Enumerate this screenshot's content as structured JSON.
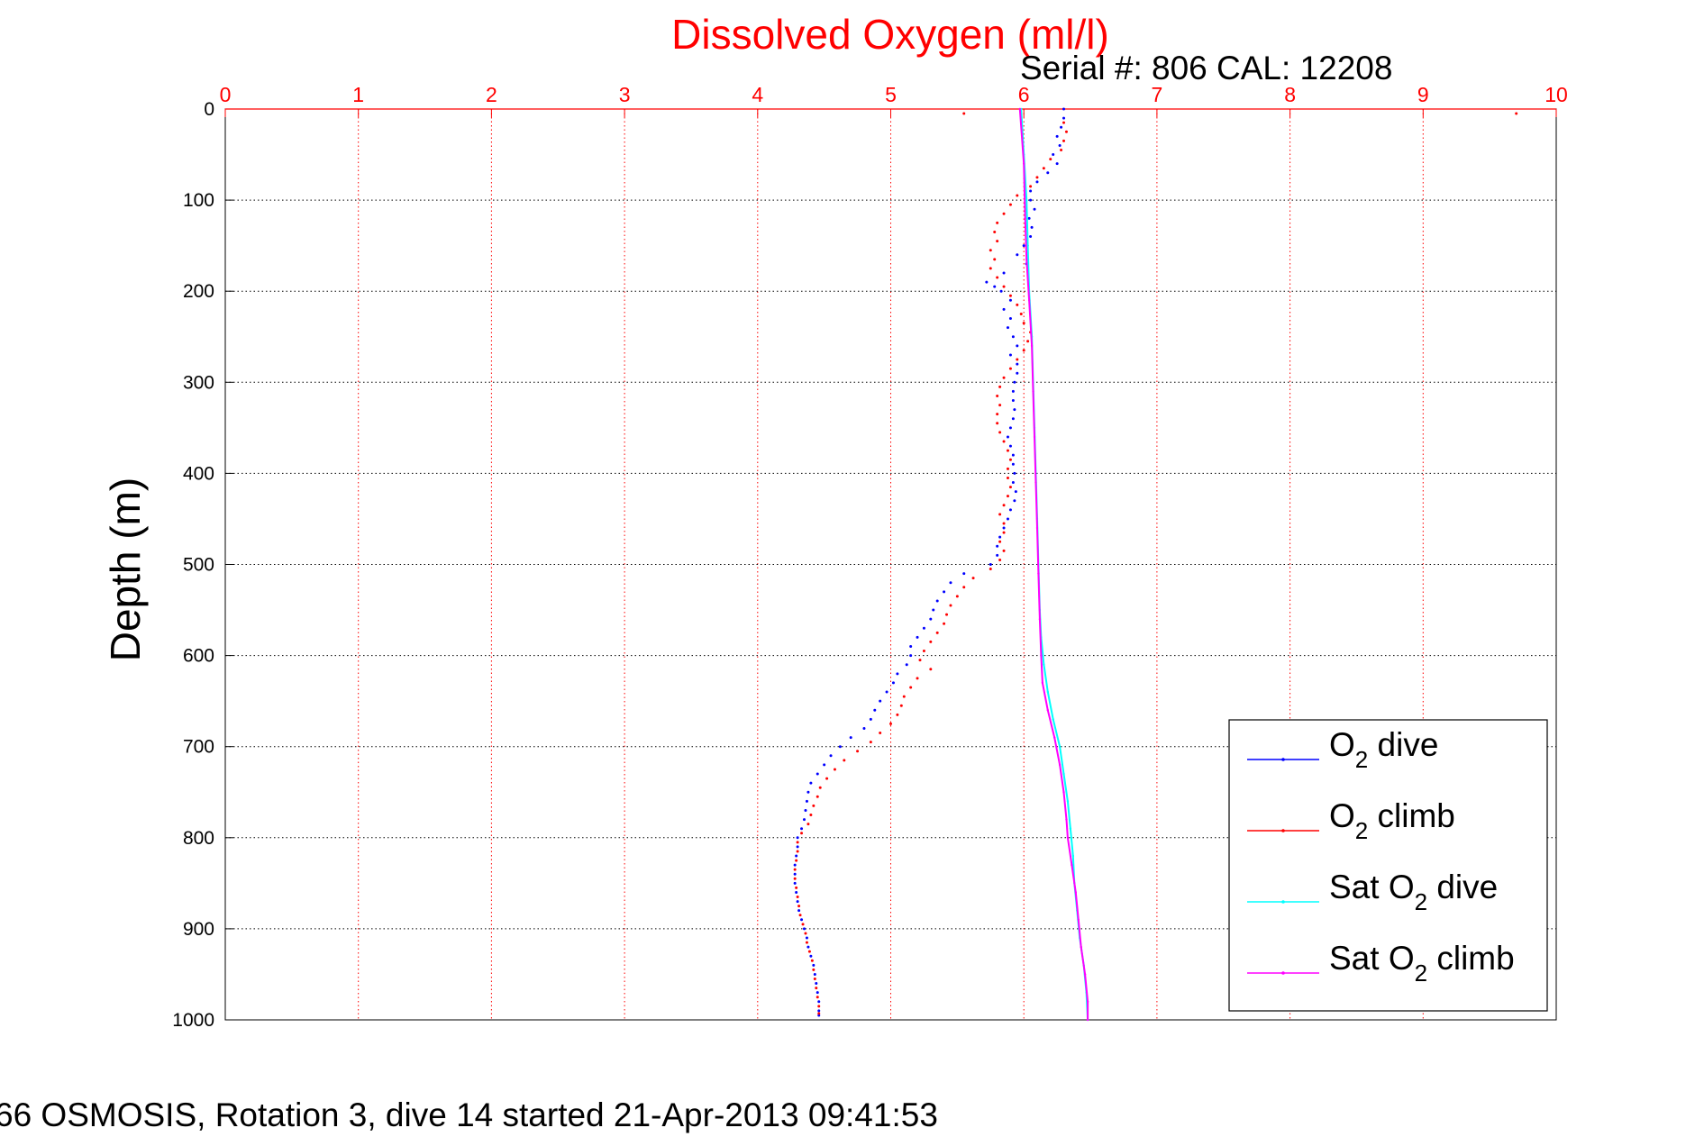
{
  "colors": {
    "x_axis": "#ff0000",
    "o2_dive": "#0000ff",
    "o2_climb": "#ff0000",
    "sat_dive": "#00ffff",
    "sat_climb": "#ff00ff"
  },
  "serial_text": "Serial #: 806  CAL: 12208",
  "footer_text": "66 OSMOSIS, Rotation 3, dive 14 started 21-Apr-2013 09:41:53",
  "chart_data": {
    "type": "scatter",
    "title": "Dissolved Oxygen (ml/l)",
    "xlabel": "",
    "ylabel": "Depth (m)",
    "xlim": [
      0,
      10
    ],
    "ylim": [
      0,
      1000
    ],
    "y_reversed": true,
    "x_axis_position": "top",
    "grid": true,
    "legend_position": "bottom-right",
    "xticks": [
      "0",
      "1",
      "2",
      "3",
      "4",
      "5",
      "6",
      "7",
      "8",
      "9",
      "10"
    ],
    "yticks": [
      "0",
      "100",
      "200",
      "300",
      "400",
      "500",
      "600",
      "700",
      "800",
      "900",
      "1000"
    ],
    "legend": [
      {
        "prefix": "O",
        "sub": "2",
        "suffix": " dive",
        "color": "#0000ff"
      },
      {
        "prefix": "O",
        "sub": "2",
        "suffix": " climb",
        "color": "#ff0000"
      },
      {
        "prefix": "Sat O",
        "sub": "2",
        "suffix": " dive",
        "color": "#00ffff"
      },
      {
        "prefix": "Sat O",
        "sub": "2",
        "suffix": " climb",
        "color": "#ff00ff"
      }
    ],
    "series": [
      {
        "key": "o2_dive",
        "marker": "dot",
        "points": [
          [
            6.3,
            0
          ],
          [
            6.3,
            10
          ],
          [
            6.28,
            20
          ],
          [
            6.25,
            30
          ],
          [
            6.27,
            40
          ],
          [
            6.22,
            50
          ],
          [
            6.25,
            60
          ],
          [
            6.18,
            70
          ],
          [
            6.1,
            80
          ],
          [
            6.05,
            90
          ],
          [
            6.05,
            100
          ],
          [
            6.08,
            110
          ],
          [
            6.04,
            120
          ],
          [
            6.06,
            130
          ],
          [
            6.05,
            140
          ],
          [
            6.0,
            150
          ],
          [
            5.95,
            160
          ],
          [
            6.02,
            170
          ],
          [
            5.85,
            180
          ],
          [
            5.72,
            190
          ],
          [
            5.78,
            195
          ],
          [
            5.83,
            200
          ],
          [
            5.9,
            210
          ],
          [
            5.85,
            220
          ],
          [
            5.9,
            230
          ],
          [
            5.88,
            240
          ],
          [
            5.92,
            250
          ],
          [
            5.95,
            260
          ],
          [
            5.9,
            270
          ],
          [
            5.95,
            280
          ],
          [
            5.95,
            290
          ],
          [
            5.93,
            300
          ],
          [
            5.92,
            310
          ],
          [
            5.92,
            320
          ],
          [
            5.93,
            330
          ],
          [
            5.92,
            340
          ],
          [
            5.9,
            350
          ],
          [
            5.88,
            360
          ],
          [
            5.9,
            370
          ],
          [
            5.92,
            380
          ],
          [
            5.92,
            390
          ],
          [
            5.93,
            400
          ],
          [
            5.92,
            410
          ],
          [
            5.94,
            420
          ],
          [
            5.93,
            430
          ],
          [
            5.9,
            440
          ],
          [
            5.88,
            450
          ],
          [
            5.85,
            460
          ],
          [
            5.82,
            470
          ],
          [
            5.8,
            480
          ],
          [
            5.8,
            490
          ],
          [
            5.75,
            500
          ],
          [
            5.55,
            510
          ],
          [
            5.45,
            520
          ],
          [
            5.4,
            530
          ],
          [
            5.35,
            540
          ],
          [
            5.32,
            550
          ],
          [
            5.3,
            560
          ],
          [
            5.25,
            570
          ],
          [
            5.2,
            580
          ],
          [
            5.15,
            590
          ],
          [
            5.15,
            600
          ],
          [
            5.12,
            610
          ],
          [
            5.05,
            620
          ],
          [
            5.02,
            630
          ],
          [
            4.97,
            640
          ],
          [
            4.92,
            650
          ],
          [
            4.88,
            660
          ],
          [
            4.85,
            670
          ],
          [
            4.8,
            680
          ],
          [
            4.7,
            690
          ],
          [
            4.62,
            700
          ],
          [
            4.55,
            710
          ],
          [
            4.5,
            720
          ],
          [
            4.45,
            730
          ],
          [
            4.4,
            740
          ],
          [
            4.38,
            750
          ],
          [
            4.37,
            760
          ],
          [
            4.36,
            770
          ],
          [
            4.35,
            780
          ],
          [
            4.33,
            790
          ],
          [
            4.3,
            800
          ],
          [
            4.3,
            810
          ],
          [
            4.29,
            820
          ],
          [
            4.28,
            830
          ],
          [
            4.28,
            840
          ],
          [
            4.28,
            850
          ],
          [
            4.29,
            860
          ],
          [
            4.3,
            870
          ],
          [
            4.31,
            880
          ],
          [
            4.33,
            890
          ],
          [
            4.35,
            900
          ],
          [
            4.37,
            910
          ],
          [
            4.38,
            920
          ],
          [
            4.4,
            930
          ],
          [
            4.42,
            940
          ],
          [
            4.43,
            950
          ],
          [
            4.44,
            960
          ],
          [
            4.45,
            970
          ],
          [
            4.46,
            980
          ],
          [
            4.46,
            990
          ],
          [
            4.46,
            995
          ]
        ]
      },
      {
        "key": "o2_climb",
        "marker": "dot",
        "points": [
          [
            5.55,
            5
          ],
          [
            9.7,
            5
          ],
          [
            6.3,
            15
          ],
          [
            6.32,
            25
          ],
          [
            6.3,
            35
          ],
          [
            6.28,
            45
          ],
          [
            6.2,
            55
          ],
          [
            6.15,
            65
          ],
          [
            6.1,
            75
          ],
          [
            6.05,
            85
          ],
          [
            5.95,
            95
          ],
          [
            5.9,
            105
          ],
          [
            5.85,
            115
          ],
          [
            5.8,
            125
          ],
          [
            5.78,
            135
          ],
          [
            5.8,
            145
          ],
          [
            5.75,
            155
          ],
          [
            5.78,
            165
          ],
          [
            5.75,
            175
          ],
          [
            5.8,
            185
          ],
          [
            5.85,
            195
          ],
          [
            5.9,
            205
          ],
          [
            5.95,
            215
          ],
          [
            5.98,
            225
          ],
          [
            6.0,
            235
          ],
          [
            6.05,
            245
          ],
          [
            6.03,
            255
          ],
          [
            6.0,
            265
          ],
          [
            5.95,
            275
          ],
          [
            5.9,
            285
          ],
          [
            5.85,
            295
          ],
          [
            5.82,
            305
          ],
          [
            5.8,
            315
          ],
          [
            5.82,
            325
          ],
          [
            5.8,
            335
          ],
          [
            5.8,
            345
          ],
          [
            5.82,
            355
          ],
          [
            5.85,
            365
          ],
          [
            5.88,
            375
          ],
          [
            5.9,
            385
          ],
          [
            5.88,
            395
          ],
          [
            5.88,
            405
          ],
          [
            5.9,
            415
          ],
          [
            5.88,
            425
          ],
          [
            5.85,
            435
          ],
          [
            5.82,
            445
          ],
          [
            5.85,
            455
          ],
          [
            5.85,
            465
          ],
          [
            5.82,
            475
          ],
          [
            5.85,
            485
          ],
          [
            5.82,
            495
          ],
          [
            5.75,
            505
          ],
          [
            5.62,
            515
          ],
          [
            5.55,
            525
          ],
          [
            5.5,
            535
          ],
          [
            5.45,
            545
          ],
          [
            5.42,
            555
          ],
          [
            5.4,
            565
          ],
          [
            5.35,
            575
          ],
          [
            5.3,
            585
          ],
          [
            5.25,
            595
          ],
          [
            5.22,
            605
          ],
          [
            5.3,
            615
          ],
          [
            5.2,
            625
          ],
          [
            5.15,
            635
          ],
          [
            5.1,
            645
          ],
          [
            5.08,
            655
          ],
          [
            5.05,
            665
          ],
          [
            5.0,
            675
          ],
          [
            4.92,
            685
          ],
          [
            4.85,
            695
          ],
          [
            4.75,
            705
          ],
          [
            4.65,
            715
          ],
          [
            4.58,
            725
          ],
          [
            4.52,
            735
          ],
          [
            4.47,
            745
          ],
          [
            4.45,
            755
          ],
          [
            4.42,
            765
          ],
          [
            4.4,
            775
          ],
          [
            4.38,
            785
          ],
          [
            4.33,
            795
          ],
          [
            4.3,
            805
          ],
          [
            4.3,
            815
          ],
          [
            4.29,
            825
          ],
          [
            4.28,
            835
          ],
          [
            4.28,
            845
          ],
          [
            4.29,
            855
          ],
          [
            4.3,
            865
          ],
          [
            4.31,
            875
          ],
          [
            4.32,
            885
          ],
          [
            4.34,
            895
          ],
          [
            4.36,
            905
          ],
          [
            4.37,
            915
          ],
          [
            4.39,
            925
          ],
          [
            4.41,
            935
          ],
          [
            4.42,
            945
          ],
          [
            4.43,
            955
          ],
          [
            4.44,
            965
          ],
          [
            4.45,
            975
          ],
          [
            4.46,
            985
          ],
          [
            4.46,
            993
          ]
        ]
      },
      {
        "key": "sat_dive",
        "marker": "line",
        "points": [
          [
            5.98,
            0
          ],
          [
            6.0,
            50
          ],
          [
            6.02,
            100
          ],
          [
            6.03,
            150
          ],
          [
            6.04,
            200
          ],
          [
            6.06,
            250
          ],
          [
            6.07,
            300
          ],
          [
            6.08,
            350
          ],
          [
            6.09,
            400
          ],
          [
            6.1,
            450
          ],
          [
            6.11,
            500
          ],
          [
            6.12,
            550
          ],
          [
            6.13,
            580
          ],
          [
            6.15,
            610
          ],
          [
            6.18,
            640
          ],
          [
            6.22,
            670
          ],
          [
            6.27,
            700
          ],
          [
            6.3,
            730
          ],
          [
            6.33,
            760
          ],
          [
            6.35,
            790
          ],
          [
            6.37,
            820
          ],
          [
            6.38,
            850
          ],
          [
            6.4,
            880
          ],
          [
            6.42,
            910
          ],
          [
            6.45,
            940
          ],
          [
            6.47,
            970
          ],
          [
            6.48,
            1000
          ]
        ]
      },
      {
        "key": "sat_climb",
        "marker": "line",
        "points": [
          [
            5.97,
            0
          ],
          [
            6.0,
            60
          ],
          [
            6.01,
            120
          ],
          [
            6.02,
            165
          ],
          [
            6.04,
            210
          ],
          [
            6.06,
            260
          ],
          [
            6.07,
            310
          ],
          [
            6.08,
            360
          ],
          [
            6.09,
            410
          ],
          [
            6.1,
            460
          ],
          [
            6.11,
            510
          ],
          [
            6.12,
            560
          ],
          [
            6.13,
            600
          ],
          [
            6.14,
            630
          ],
          [
            6.18,
            660
          ],
          [
            6.23,
            690
          ],
          [
            6.27,
            720
          ],
          [
            6.3,
            750
          ],
          [
            6.32,
            780
          ],
          [
            6.33,
            800
          ],
          [
            6.36,
            830
          ],
          [
            6.39,
            860
          ],
          [
            6.41,
            890
          ],
          [
            6.43,
            920
          ],
          [
            6.46,
            950
          ],
          [
            6.48,
            980
          ],
          [
            6.48,
            1000
          ]
        ]
      }
    ]
  }
}
